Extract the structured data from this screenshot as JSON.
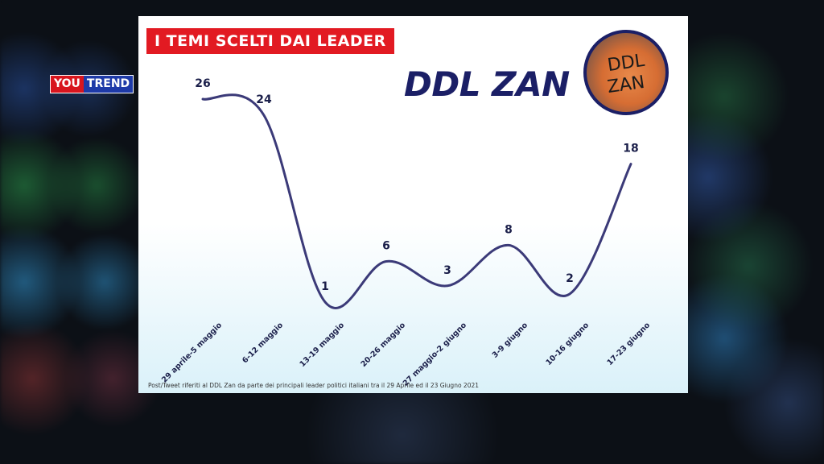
{
  "logo": {
    "part1": "YOU",
    "part2": "TREND"
  },
  "header": {
    "badge": "I TEMI SCELTI DAI LEADER",
    "title": "DDL ZAN",
    "photo_text_line1": "DDL",
    "photo_text_line2": "ZAN"
  },
  "footnote": "Post/Tweet riferiti al DDL Zan da parte dei principali leader politici italiani tra il 29 Aprile ed il 23 Giugno 2021",
  "colors": {
    "line": "#3b3a78",
    "badge": "#e21a22",
    "title": "#1b1f66"
  },
  "chart_data": {
    "type": "line",
    "categories": [
      "29 aprile-5 maggio",
      "6-12 maggio",
      "13-19 maggio",
      "20-26 maggio",
      "27 maggio-2 giugno",
      "3-9 giugno",
      "10-16 giugno",
      "17-23 giugno"
    ],
    "values": [
      26,
      24,
      1,
      6,
      3,
      8,
      2,
      18
    ],
    "data_labels": [
      "26",
      "24",
      "1",
      "6",
      "3",
      "8",
      "2",
      "18"
    ],
    "title": "",
    "xlabel": "",
    "ylabel": "",
    "ylim": [
      0,
      26
    ],
    "grid": false,
    "legend": "none"
  }
}
